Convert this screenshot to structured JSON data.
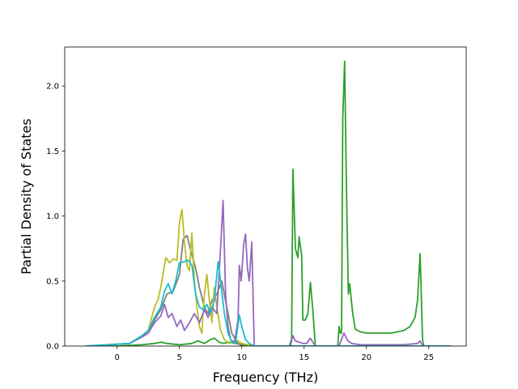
{
  "chart_data": {
    "type": "line",
    "title": "",
    "xlabel": "Frequency (THz)",
    "ylabel": "Partial Density of States",
    "xlim": [
      -4.2,
      28.0
    ],
    "ylim": [
      0,
      2.3
    ],
    "xticks": [
      0,
      5,
      10,
      15,
      20,
      25
    ],
    "xtick_labels": [
      "0",
      "5",
      "10",
      "15",
      "20",
      "25"
    ],
    "yticks": [
      0.0,
      0.5,
      1.0,
      1.5,
      2.0
    ],
    "ytick_labels": [
      "0.0",
      "0.5",
      "1.0",
      "1.5",
      "2.0"
    ],
    "grid": false,
    "legend": "none",
    "series": [
      {
        "color": "#2ca02c",
        "points": [
          [
            -2.5,
            0
          ],
          [
            0,
            0
          ],
          [
            2,
            0.01
          ],
          [
            3,
            0.02
          ],
          [
            3.5,
            0.03
          ],
          [
            4,
            0.02
          ],
          [
            5,
            0.01
          ],
          [
            6,
            0.02
          ],
          [
            6.5,
            0.04
          ],
          [
            7,
            0.02
          ],
          [
            7.5,
            0.05
          ],
          [
            7.8,
            0.06
          ],
          [
            8.2,
            0.03
          ],
          [
            8.5,
            0.02
          ],
          [
            9,
            0.03
          ],
          [
            9.5,
            0.02
          ],
          [
            10,
            0.01
          ],
          [
            11,
            0
          ],
          [
            13.8,
            0
          ],
          [
            14.0,
            0.05
          ],
          [
            14.1,
            1.36
          ],
          [
            14.3,
            0.75
          ],
          [
            14.5,
            0.68
          ],
          [
            14.6,
            0.84
          ],
          [
            14.8,
            0.7
          ],
          [
            14.9,
            0.2
          ],
          [
            15.1,
            0.2
          ],
          [
            15.3,
            0.25
          ],
          [
            15.5,
            0.49
          ],
          [
            15.7,
            0.28
          ],
          [
            15.9,
            0
          ],
          [
            17.7,
            0
          ],
          [
            17.8,
            0.15
          ],
          [
            17.9,
            0.1
          ],
          [
            18.0,
            0.1
          ],
          [
            18.1,
            1.75
          ],
          [
            18.25,
            2.19
          ],
          [
            18.4,
            1.2
          ],
          [
            18.55,
            0.4
          ],
          [
            18.65,
            0.48
          ],
          [
            18.75,
            0.39
          ],
          [
            18.9,
            0.25
          ],
          [
            19.1,
            0.13
          ],
          [
            19.5,
            0.11
          ],
          [
            20,
            0.1
          ],
          [
            21,
            0.1
          ],
          [
            22,
            0.1
          ],
          [
            23,
            0.12
          ],
          [
            23.5,
            0.15
          ],
          [
            23.9,
            0.22
          ],
          [
            24.1,
            0.35
          ],
          [
            24.3,
            0.71
          ],
          [
            24.4,
            0.4
          ],
          [
            24.5,
            0.05
          ],
          [
            24.6,
            0
          ],
          [
            26.8,
            0
          ]
        ]
      },
      {
        "color": "#7f7f7f",
        "points": [
          [
            -2.5,
            0
          ],
          [
            1,
            0.02
          ],
          [
            2,
            0.08
          ],
          [
            2.5,
            0.1
          ],
          [
            3,
            0.2
          ],
          [
            3.5,
            0.28
          ],
          [
            4,
            0.4
          ],
          [
            4.5,
            0.42
          ],
          [
            5,
            0.55
          ],
          [
            5.3,
            0.82
          ],
          [
            5.6,
            0.85
          ],
          [
            6,
            0.7
          ],
          [
            6.3,
            0.6
          ],
          [
            6.6,
            0.45
          ],
          [
            7,
            0.3
          ],
          [
            7.3,
            0.25
          ],
          [
            7.6,
            0.35
          ],
          [
            8,
            0.4
          ],
          [
            8.4,
            0.5
          ],
          [
            8.8,
            0.3
          ],
          [
            9.2,
            0.1
          ],
          [
            9.6,
            0.03
          ],
          [
            10,
            0
          ],
          [
            10.5,
            0
          ],
          [
            26.8,
            0
          ]
        ]
      },
      {
        "color": "#bcbd22",
        "points": [
          [
            -2.5,
            0
          ],
          [
            1,
            0.02
          ],
          [
            2,
            0.08
          ],
          [
            2.5,
            0.12
          ],
          [
            3,
            0.3
          ],
          [
            3.3,
            0.36
          ],
          [
            3.6,
            0.5
          ],
          [
            3.9,
            0.68
          ],
          [
            4.2,
            0.64
          ],
          [
            4.5,
            0.67
          ],
          [
            4.8,
            0.66
          ],
          [
            5.0,
            0.95
          ],
          [
            5.2,
            1.05
          ],
          [
            5.4,
            0.8
          ],
          [
            5.6,
            0.62
          ],
          [
            5.8,
            0.58
          ],
          [
            6.0,
            0.87
          ],
          [
            6.2,
            0.5
          ],
          [
            6.4,
            0.3
          ],
          [
            6.6,
            0.15
          ],
          [
            6.8,
            0.1
          ],
          [
            7.0,
            0.4
          ],
          [
            7.2,
            0.55
          ],
          [
            7.4,
            0.35
          ],
          [
            7.6,
            0.18
          ],
          [
            7.8,
            0.45
          ],
          [
            8.0,
            0.3
          ],
          [
            8.3,
            0.12
          ],
          [
            8.6,
            0.05
          ],
          [
            9.0,
            0.02
          ],
          [
            9.5,
            0.05
          ],
          [
            10,
            0.02
          ],
          [
            10.5,
            0.01
          ],
          [
            11,
            0
          ],
          [
            26.8,
            0
          ]
        ]
      },
      {
        "color": "#9467bd",
        "points": [
          [
            -2.5,
            0
          ],
          [
            1,
            0.02
          ],
          [
            2,
            0.07
          ],
          [
            2.5,
            0.1
          ],
          [
            3,
            0.18
          ],
          [
            3.5,
            0.23
          ],
          [
            3.8,
            0.32
          ],
          [
            4.1,
            0.22
          ],
          [
            4.4,
            0.25
          ],
          [
            4.8,
            0.15
          ],
          [
            5.1,
            0.2
          ],
          [
            5.4,
            0.12
          ],
          [
            5.8,
            0.18
          ],
          [
            6.2,
            0.25
          ],
          [
            6.6,
            0.18
          ],
          [
            7.0,
            0.28
          ],
          [
            7.3,
            0.22
          ],
          [
            7.6,
            0.3
          ],
          [
            8.0,
            0.25
          ],
          [
            8.3,
            0.75
          ],
          [
            8.5,
            1.12
          ],
          [
            8.7,
            0.4
          ],
          [
            8.9,
            0.15
          ],
          [
            9.1,
            0.05
          ],
          [
            9.4,
            0.02
          ],
          [
            9.7,
            0.2
          ],
          [
            9.8,
            0.62
          ],
          [
            9.95,
            0.5
          ],
          [
            10.15,
            0.78
          ],
          [
            10.3,
            0.86
          ],
          [
            10.45,
            0.6
          ],
          [
            10.6,
            0.5
          ],
          [
            10.8,
            0.8
          ],
          [
            10.9,
            0.4
          ],
          [
            11.0,
            0
          ],
          [
            13.9,
            0
          ],
          [
            14.1,
            0.08
          ],
          [
            14.3,
            0.04
          ],
          [
            14.6,
            0.03
          ],
          [
            14.9,
            0.02
          ],
          [
            15.2,
            0.02
          ],
          [
            15.5,
            0.06
          ],
          [
            15.7,
            0.03
          ],
          [
            15.9,
            0
          ],
          [
            17.8,
            0
          ],
          [
            18.0,
            0.05
          ],
          [
            18.2,
            0.1
          ],
          [
            18.5,
            0.04
          ],
          [
            18.8,
            0.02
          ],
          [
            19.5,
            0.01
          ],
          [
            23,
            0.01
          ],
          [
            24.1,
            0.02
          ],
          [
            24.3,
            0.04
          ],
          [
            24.5,
            0
          ],
          [
            26.8,
            0
          ]
        ]
      },
      {
        "color": "#17becf",
        "points": [
          [
            -2.5,
            0
          ],
          [
            1,
            0.02
          ],
          [
            1.5,
            0.05
          ],
          [
            2,
            0.08
          ],
          [
            2.5,
            0.12
          ],
          [
            3,
            0.22
          ],
          [
            3.5,
            0.3
          ],
          [
            3.8,
            0.42
          ],
          [
            4.1,
            0.48
          ],
          [
            4.4,
            0.4
          ],
          [
            4.7,
            0.5
          ],
          [
            5.0,
            0.64
          ],
          [
            5.4,
            0.65
          ],
          [
            5.7,
            0.66
          ],
          [
            6.0,
            0.62
          ],
          [
            6.3,
            0.4
          ],
          [
            6.6,
            0.3
          ],
          [
            6.9,
            0.28
          ],
          [
            7.2,
            0.32
          ],
          [
            7.5,
            0.25
          ],
          [
            7.8,
            0.35
          ],
          [
            8.1,
            0.65
          ],
          [
            8.3,
            0.5
          ],
          [
            8.6,
            0.25
          ],
          [
            8.9,
            0.1
          ],
          [
            9.2,
            0.03
          ],
          [
            9.5,
            0.02
          ],
          [
            9.8,
            0.24
          ],
          [
            10.0,
            0.15
          ],
          [
            10.3,
            0.05
          ],
          [
            10.6,
            0.02
          ],
          [
            11,
            0
          ],
          [
            26.8,
            0
          ]
        ]
      }
    ]
  }
}
